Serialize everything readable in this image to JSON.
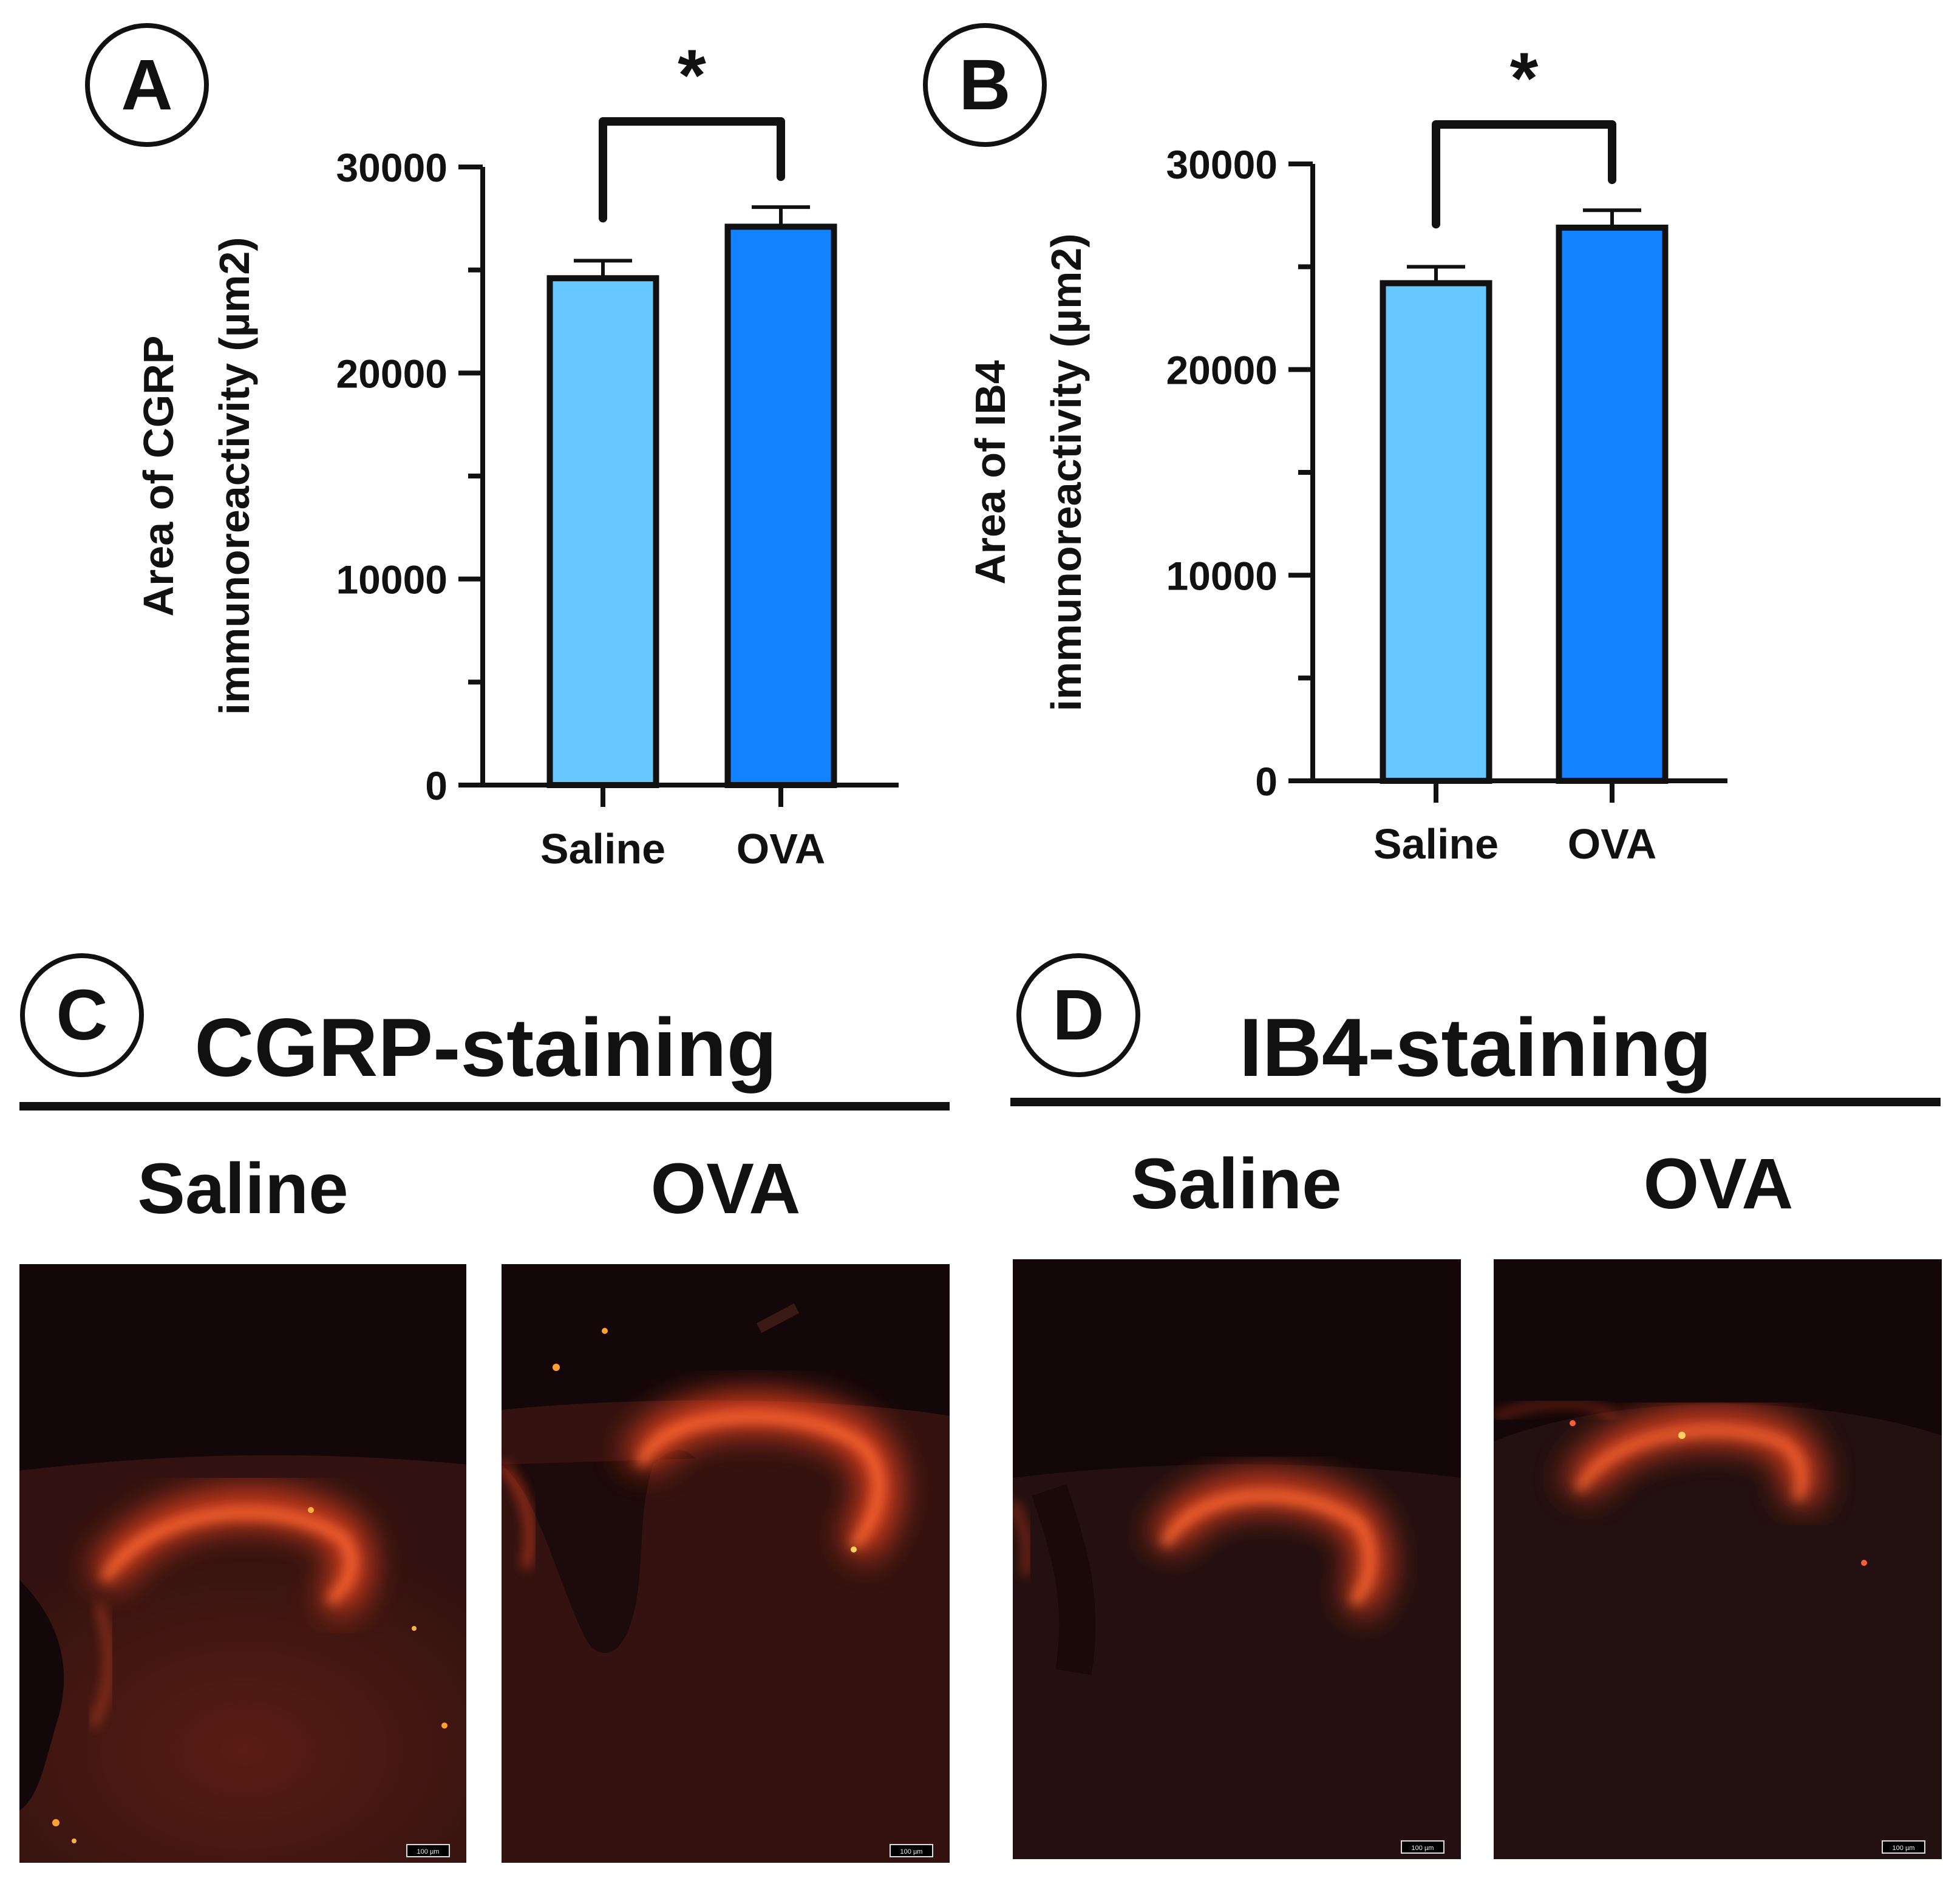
{
  "panels": {
    "A": {
      "letter": "A"
    },
    "B": {
      "letter": "B"
    },
    "C": {
      "letter": "C",
      "title": "CGRP-staining",
      "groups": [
        "Saline",
        "OVA"
      ],
      "scale_bar_label": "100 µm"
    },
    "D": {
      "letter": "D",
      "title": "IB4-staining",
      "groups": [
        "Saline",
        "OVA"
      ],
      "scale_bar_label": "100 µm"
    }
  },
  "chart_data": [
    {
      "panel": "A",
      "type": "bar",
      "categories": [
        "Saline",
        "OVA"
      ],
      "values": [
        24600,
        27100
      ],
      "errors": [
        850,
        950
      ],
      "ylabel_lines": [
        "Area of CGRP",
        "immunoreactivity (µm2)"
      ],
      "ylim": [
        0,
        30000
      ],
      "yticks": [
        0,
        10000,
        20000,
        30000
      ],
      "ytick_labels": [
        "0",
        "10000",
        "20000",
        "30000"
      ],
      "bar_colors": [
        "#66c8ff",
        "#1282ff"
      ],
      "significance": {
        "between": [
          "Saline",
          "OVA"
        ],
        "label": "*"
      },
      "grid": false,
      "legend": "none"
    },
    {
      "panel": "B",
      "type": "bar",
      "categories": [
        "Saline",
        "OVA"
      ],
      "values": [
        24200,
        26900
      ],
      "errors": [
        800,
        850
      ],
      "ylabel_lines": [
        "Area of IB4",
        "immunoreactivity (µm2)"
      ],
      "ylim": [
        0,
        30000
      ],
      "yticks": [
        0,
        10000,
        20000,
        30000
      ],
      "ytick_labels": [
        "0",
        "10000",
        "20000",
        "30000"
      ],
      "bar_colors": [
        "#66c8ff",
        "#1282ff"
      ],
      "significance": {
        "between": [
          "Saline",
          "OVA"
        ],
        "label": "*"
      },
      "grid": false,
      "legend": "none"
    }
  ]
}
